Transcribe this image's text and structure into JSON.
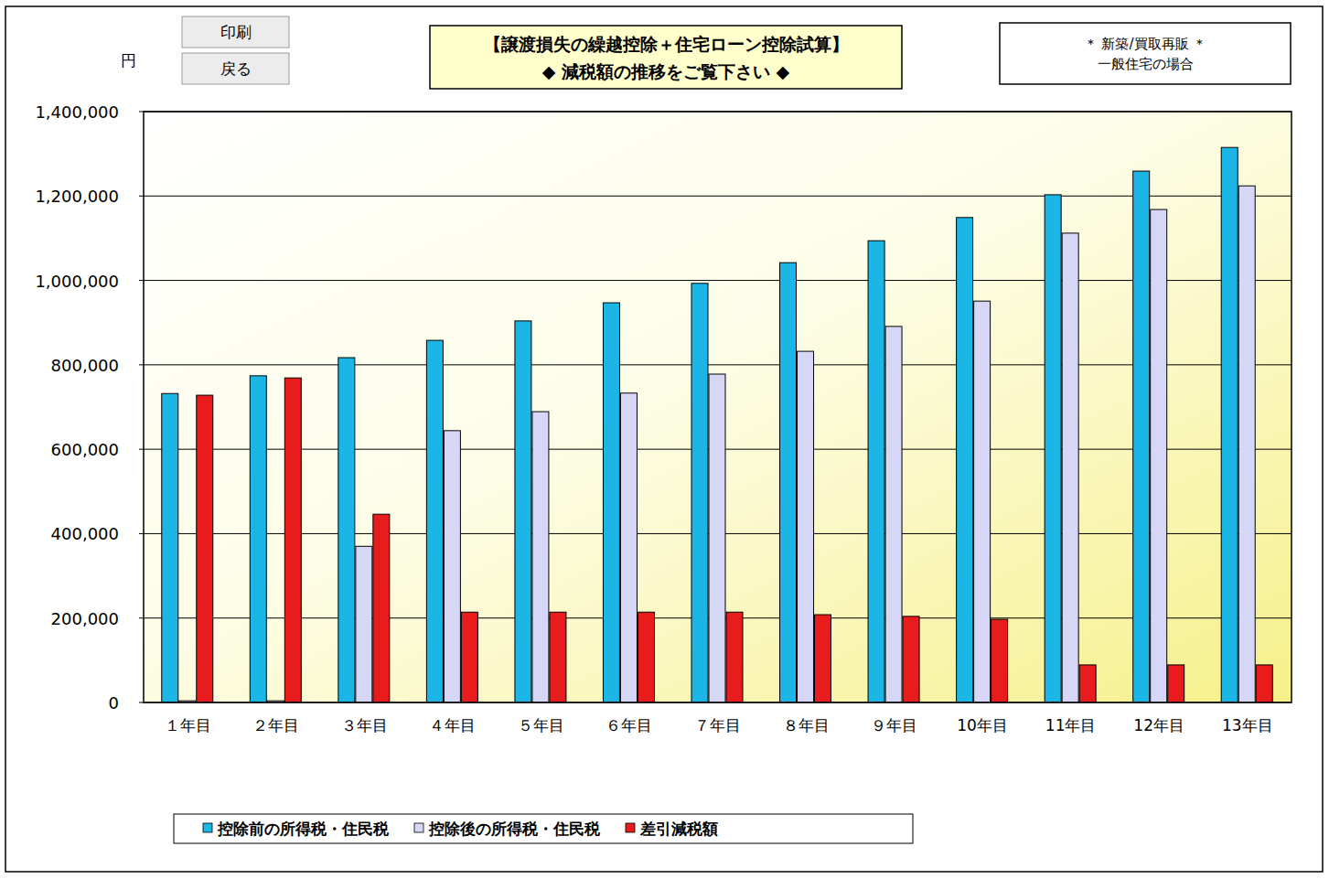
{
  "buttons": [
    "印刷",
    "戻る"
  ],
  "chart_data": {
    "type": "bar",
    "title": "【譲渡損失の繰越控除＋住宅ローン控除試算】",
    "subtitle": "◆ 減税額の推移をご覧下さい ◆",
    "y_label": "円",
    "annotations": [
      "＊ 新築/買取再販 ＊",
      "一般住宅の場合"
    ],
    "categories": [
      "１年目",
      "２年目",
      "３年目",
      "４年目",
      "５年目",
      "６年目",
      "７年目",
      "８年目",
      "９年目",
      "10年目",
      "11年目",
      "12年目",
      "13年目"
    ],
    "series": [
      {
        "name": "控除前の所得税・住民税",
        "color": "#1cb6e6",
        "values": [
          732000,
          774000,
          817000,
          858000,
          904000,
          947000,
          993000,
          1042000,
          1094000,
          1149000,
          1203000,
          1259000,
          1315000
        ]
      },
      {
        "name": "控除後の所得税・住民税",
        "color": "#d6d6f6",
        "values": [
          4000,
          4000,
          370000,
          644000,
          689000,
          733000,
          778000,
          832000,
          891000,
          951000,
          1112000,
          1168000,
          1224000
        ]
      },
      {
        "name": "差引減税額",
        "color": "#e81c1c",
        "values": [
          728000,
          769000,
          446000,
          214000,
          214000,
          214000,
          214000,
          208000,
          204000,
          197000,
          89000,
          89000,
          89000
        ]
      }
    ],
    "ylim": [
      0,
      1400000
    ],
    "yticks": [
      0,
      {
        "value": 200000,
        "label": "200,000"
      },
      {
        "value": 400000,
        "label": "400,000"
      },
      {
        "value": 600000,
        "label": "600,000"
      },
      {
        "value": 800000,
        "label": "800,000"
      },
      {
        "value": 1000000,
        "label": "1,000,000"
      },
      {
        "value": 1200000,
        "label": "1,200,000"
      },
      {
        "value": 1400000,
        "label": "1,400,000"
      }
    ],
    "grid": true,
    "legend": "bottom"
  }
}
